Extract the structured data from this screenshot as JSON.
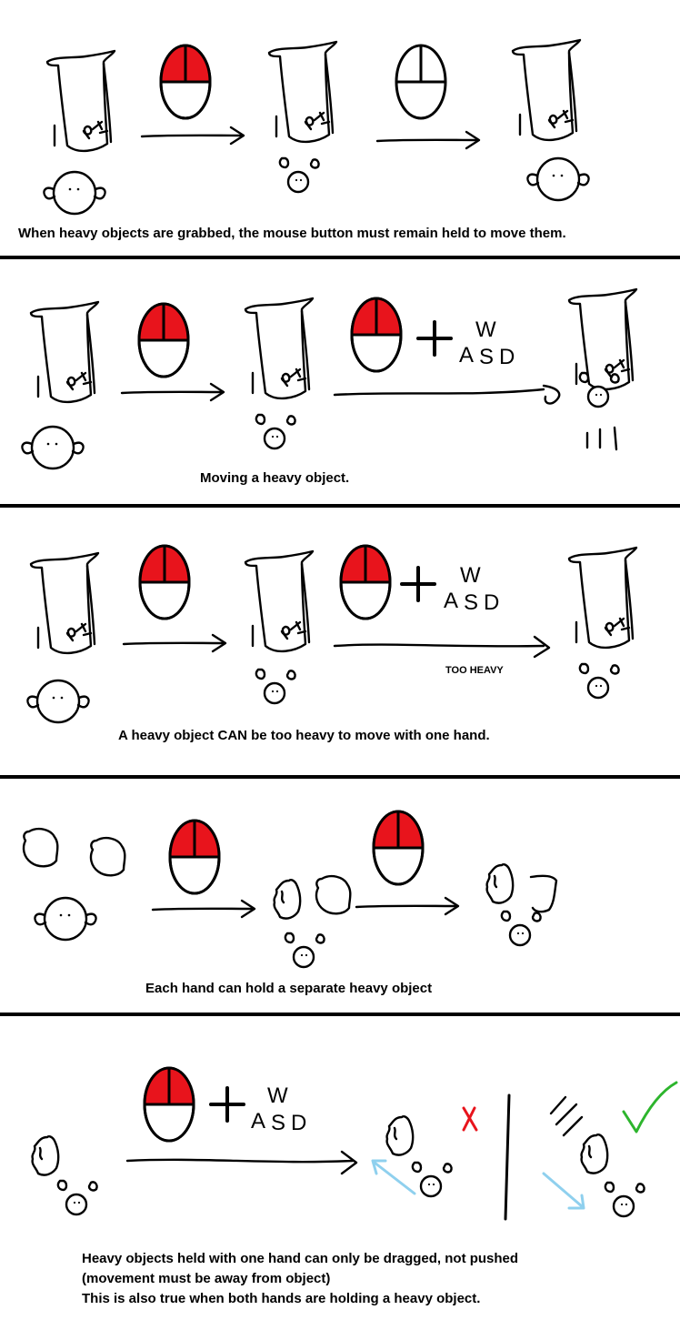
{
  "panels": [
    {
      "caption": "When heavy objects are grabbed, the mouse button must remain held to move them."
    },
    {
      "caption": "Moving a heavy object."
    },
    {
      "caption": "A heavy object CAN be too heavy to move with one hand.",
      "note": "TOO HEAVY"
    },
    {
      "caption": "Each hand can hold a separate heavy object"
    },
    {
      "caption_lines": [
        "Heavy objects held with one hand can only be dragged, not pushed",
        "(movement must be away from object)",
        "This is also true when both hands are holding a heavy object."
      ]
    }
  ],
  "keys": {
    "w": "W",
    "a": "A",
    "s": "S",
    "d": "D",
    "plus": "+"
  },
  "colors": {
    "mouse_button": "#e8141c",
    "wrong_mark": "#e8141c",
    "right_mark": "#2db52d",
    "arrow_blue": "#8fd0ee",
    "separator": "#000000"
  },
  "icons": [
    "mouse-icon",
    "character-icon",
    "statue-icon",
    "rock-icon",
    "arrow-icon",
    "cross-icon",
    "check-icon"
  ]
}
